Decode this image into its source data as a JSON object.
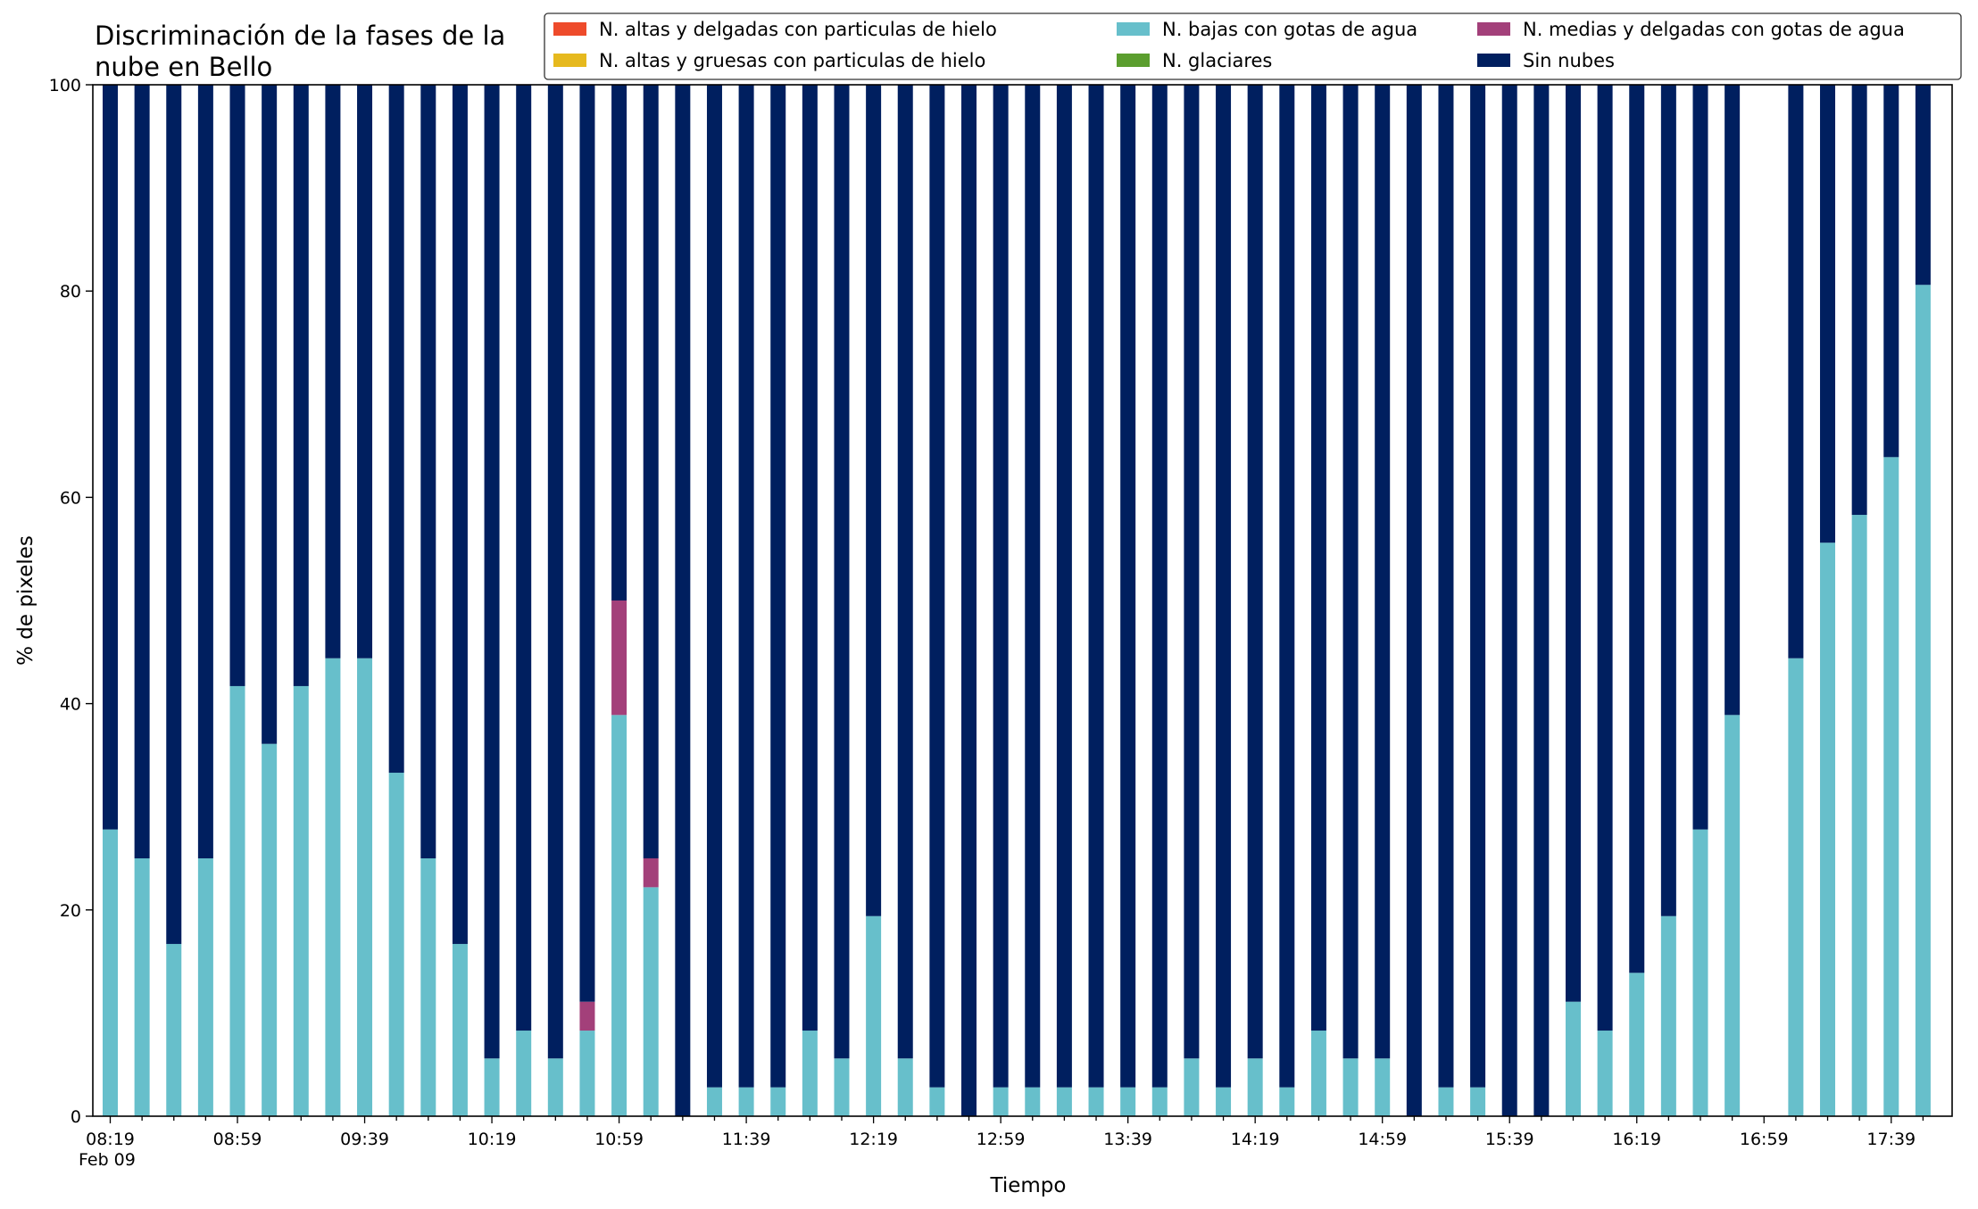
{
  "chart_data": {
    "type": "bar",
    "stacked": true,
    "title": "Discriminación de la fases de la nube en Bello",
    "title_lines": [
      "Discriminación de la fases de la",
      "nube en Bello"
    ],
    "xlabel": "Tiempo",
    "ylabel": "% de pixeles",
    "ylim": [
      0,
      100
    ],
    "yticks": [
      0,
      20,
      40,
      60,
      80,
      100
    ],
    "grid": false,
    "legend_placement": "top-right",
    "x_interval_minutes": 10,
    "x_start": "08:19",
    "x_date_label": "Feb 09",
    "xtick_labels": [
      "08:19",
      "08:59",
      "09:39",
      "10:19",
      "10:59",
      "11:39",
      "12:19",
      "12:59",
      "13:39",
      "14:19",
      "14:59",
      "15:39",
      "16:19",
      "16:59",
      "17:39"
    ],
    "categories": [
      "08:19",
      "08:29",
      "08:39",
      "08:49",
      "08:59",
      "09:09",
      "09:19",
      "09:29",
      "09:39",
      "09:49",
      "09:59",
      "10:09",
      "10:19",
      "10:29",
      "10:39",
      "10:49",
      "10:59",
      "11:09",
      "11:19",
      "11:29",
      "11:39",
      "11:49",
      "11:59",
      "12:09",
      "12:19",
      "12:29",
      "12:39",
      "12:49",
      "12:59",
      "13:09",
      "13:19",
      "13:29",
      "13:39",
      "13:49",
      "13:59",
      "14:09",
      "14:19",
      "14:29",
      "14:39",
      "14:49",
      "14:59",
      "15:09",
      "15:19",
      "15:29",
      "15:39",
      "15:49",
      "15:59",
      "16:09",
      "16:19",
      "16:29",
      "16:39",
      "16:49",
      "16:59",
      "17:09",
      "17:19",
      "17:29",
      "17:39",
      "17:49"
    ],
    "series": [
      {
        "name": "N. altas y delgadas con particulas de hielo",
        "color": "#ee4b2b",
        "values": [
          0,
          0,
          0,
          0,
          0,
          0,
          0,
          0,
          0,
          0,
          0,
          0,
          0,
          0,
          0,
          0,
          0,
          0,
          0,
          0,
          0,
          0,
          0,
          0,
          0,
          0,
          0,
          0,
          0,
          0,
          0,
          0,
          0,
          0,
          0,
          0,
          0,
          0,
          0,
          0,
          0,
          0,
          0,
          0,
          0,
          0,
          0,
          0,
          0,
          0,
          0,
          0,
          0,
          0,
          0,
          0,
          0,
          0
        ]
      },
      {
        "name": "N. altas y gruesas con particulas de hielo",
        "color": "#e6b91e",
        "values": [
          0,
          0,
          0,
          0,
          0,
          0,
          0,
          0,
          0,
          0,
          0,
          0,
          0,
          0,
          0,
          0,
          0,
          0,
          0,
          0,
          0,
          0,
          0,
          0,
          0,
          0,
          0,
          0,
          0,
          0,
          0,
          0,
          0,
          0,
          0,
          0,
          0,
          0,
          0,
          0,
          0,
          0,
          0,
          0,
          0,
          0,
          0,
          0,
          0,
          0,
          0,
          0,
          0,
          0,
          0,
          0,
          0,
          0
        ]
      },
      {
        "name": "N. bajas con gotas de agua",
        "color": "#67bfcb",
        "values": [
          27.8,
          25,
          16.7,
          25,
          41.7,
          36.1,
          41.7,
          44.4,
          44.4,
          33.3,
          25,
          16.7,
          5.6,
          8.3,
          5.6,
          8.3,
          38.9,
          22.2,
          0,
          2.8,
          2.8,
          2.8,
          8.3,
          5.6,
          19.4,
          5.6,
          2.8,
          0,
          2.8,
          2.8,
          2.8,
          2.8,
          2.8,
          2.8,
          5.6,
          2.8,
          5.6,
          2.8,
          8.3,
          5.6,
          5.6,
          0,
          2.8,
          2.8,
          0,
          0,
          11.1,
          8.3,
          13.9,
          19.4,
          27.8,
          38.9,
          0,
          44.4,
          55.6,
          58.3,
          63.9,
          80.6
        ]
      },
      {
        "name": "N. glaciares",
        "color": "#5b9e2e",
        "values": [
          0,
          0,
          0,
          0,
          0,
          0,
          0,
          0,
          0,
          0,
          0,
          0,
          0,
          0,
          0,
          0,
          0,
          0,
          0,
          0,
          0,
          0,
          0,
          0,
          0,
          0,
          0,
          0,
          0,
          0,
          0,
          0,
          0,
          0,
          0,
          0,
          0,
          0,
          0,
          0,
          0,
          0,
          0,
          0,
          0,
          0,
          0,
          0,
          0,
          0,
          0,
          0,
          0,
          0,
          0,
          0,
          0,
          0
        ]
      },
      {
        "name": "N. medias y delgadas con gotas de agua",
        "color": "#a3407a",
        "values": [
          0,
          0,
          0,
          0,
          0,
          0,
          0,
          0,
          0,
          0,
          0,
          0,
          0,
          0,
          0,
          2.8,
          11.1,
          2.8,
          0,
          0,
          0,
          0,
          0,
          0,
          0,
          0,
          0,
          0,
          0,
          0,
          0,
          0,
          0,
          0,
          0,
          0,
          0,
          0,
          0,
          0,
          0,
          0,
          0,
          0,
          0,
          0,
          0,
          0,
          0,
          0,
          0,
          0,
          0,
          0,
          0,
          0,
          0,
          0
        ]
      },
      {
        "name": "Sin nubes",
        "color": "#001f5f",
        "values": [
          72.2,
          75,
          83.3,
          75,
          58.3,
          63.9,
          58.3,
          55.6,
          55.6,
          66.7,
          75,
          83.3,
          94.4,
          91.7,
          94.4,
          88.9,
          50,
          75,
          100,
          97.2,
          97.2,
          97.2,
          91.7,
          94.4,
          80.6,
          94.4,
          97.2,
          100,
          97.2,
          97.2,
          97.2,
          97.2,
          97.2,
          97.2,
          94.4,
          97.2,
          94.4,
          97.2,
          91.7,
          94.4,
          94.4,
          100,
          97.2,
          97.2,
          100,
          100,
          88.9,
          91.7,
          86.1,
          80.6,
          72.2,
          61.1,
          0,
          55.6,
          44.4,
          41.7,
          36.1,
          19.4
        ]
      }
    ]
  }
}
